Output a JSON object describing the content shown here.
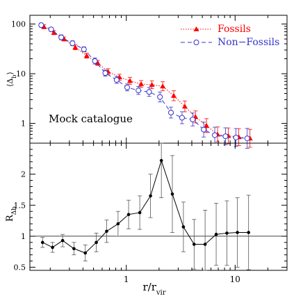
{
  "chart_data": [
    {
      "type": "line",
      "panel": "top",
      "xscale": "log",
      "yscale": "log",
      "xlim": [
        0.13,
        30
      ],
      "ylim": [
        0.4,
        150
      ],
      "ylabel": "⟨Δ_b⟩",
      "annotation": "Mock catalogue",
      "legend_position": "top-right",
      "x_tick_labels": [],
      "y_tick_labels": [
        "100",
        "10",
        "1"
      ],
      "series": [
        {
          "name": "Fossils",
          "color": "#ff0000",
          "marker": "filled-triangle",
          "line": "dotted",
          "x": [
            0.17,
            0.21,
            0.26,
            0.33,
            0.42,
            0.53,
            0.66,
            0.84,
            1.05,
            1.33,
            1.67,
            2.1,
            2.65,
            3.35,
            4.2,
            5.3,
            6.7,
            8.4,
            10.5,
            13.3
          ],
          "y": [
            88,
            67,
            50,
            34,
            23,
            16.5,
            11,
            8.5,
            7.2,
            6.2,
            6.0,
            5.6,
            3.6,
            2.2,
            1.35,
            0.9,
            0.6,
            0.56,
            0.53,
            0.5
          ],
          "err": [
            0.04,
            0.04,
            0.04,
            0.05,
            0.05,
            0.05,
            0.06,
            0.06,
            0.07,
            0.07,
            0.08,
            0.09,
            0.1,
            0.11,
            0.12,
            0.14,
            0.15,
            0.16,
            0.17,
            0.18
          ]
        },
        {
          "name": "Non−Fossils",
          "color": "#3333cc",
          "marker": "open-circle",
          "line": "dashed",
          "x": [
            0.17,
            0.21,
            0.26,
            0.33,
            0.42,
            0.53,
            0.66,
            0.84,
            1.05,
            1.33,
            1.67,
            2.1,
            2.65,
            3.35,
            4.2,
            5.3,
            6.7,
            8.4,
            10.5,
            13.3
          ],
          "y": [
            95,
            78,
            54,
            41,
            31,
            18,
            10.3,
            7.5,
            5.3,
            4.6,
            4.3,
            3.4,
            1.65,
            1.3,
            1.2,
            0.75,
            0.58,
            0.55,
            0.52,
            0.5
          ],
          "err": [
            0.04,
            0.04,
            0.05,
            0.05,
            0.05,
            0.06,
            0.06,
            0.07,
            0.07,
            0.08,
            0.09,
            0.1,
            0.11,
            0.12,
            0.13,
            0.15,
            0.16,
            0.17,
            0.18,
            0.2
          ]
        }
      ]
    },
    {
      "type": "line",
      "panel": "bottom",
      "xscale": "log",
      "yscale": "linear",
      "xlim": [
        0.13,
        30
      ],
      "ylim": [
        0.45,
        2.5
      ],
      "xlabel": "r/r_vir",
      "ylabel": "R_Δb",
      "x_tick_labels": [
        "1",
        "10"
      ],
      "y_tick_labels": [
        "0.5",
        "1",
        "1.5",
        "2"
      ],
      "reference_line": 1,
      "series": [
        {
          "color": "#000000",
          "marker": "filled-circle",
          "line": "solid",
          "x": [
            0.17,
            0.21,
            0.26,
            0.33,
            0.42,
            0.53,
            0.66,
            0.84,
            1.05,
            1.33,
            1.67,
            2.1,
            2.65,
            3.35,
            4.2,
            5.3,
            6.7,
            8.4,
            10.5,
            13.3
          ],
          "y": [
            0.9,
            0.82,
            0.93,
            0.8,
            0.73,
            0.9,
            1.08,
            1.2,
            1.35,
            1.38,
            1.65,
            2.22,
            1.68,
            1.15,
            0.87,
            0.87,
            1.03,
            1.05,
            1.06,
            1.06
          ],
          "yerr": [
            0.08,
            0.08,
            0.1,
            0.1,
            0.13,
            0.15,
            0.18,
            0.2,
            0.23,
            0.27,
            0.35,
            0.6,
            0.62,
            0.4,
            0.4,
            0.55,
            0.5,
            0.52,
            0.56,
            0.6
          ]
        }
      ]
    }
  ]
}
